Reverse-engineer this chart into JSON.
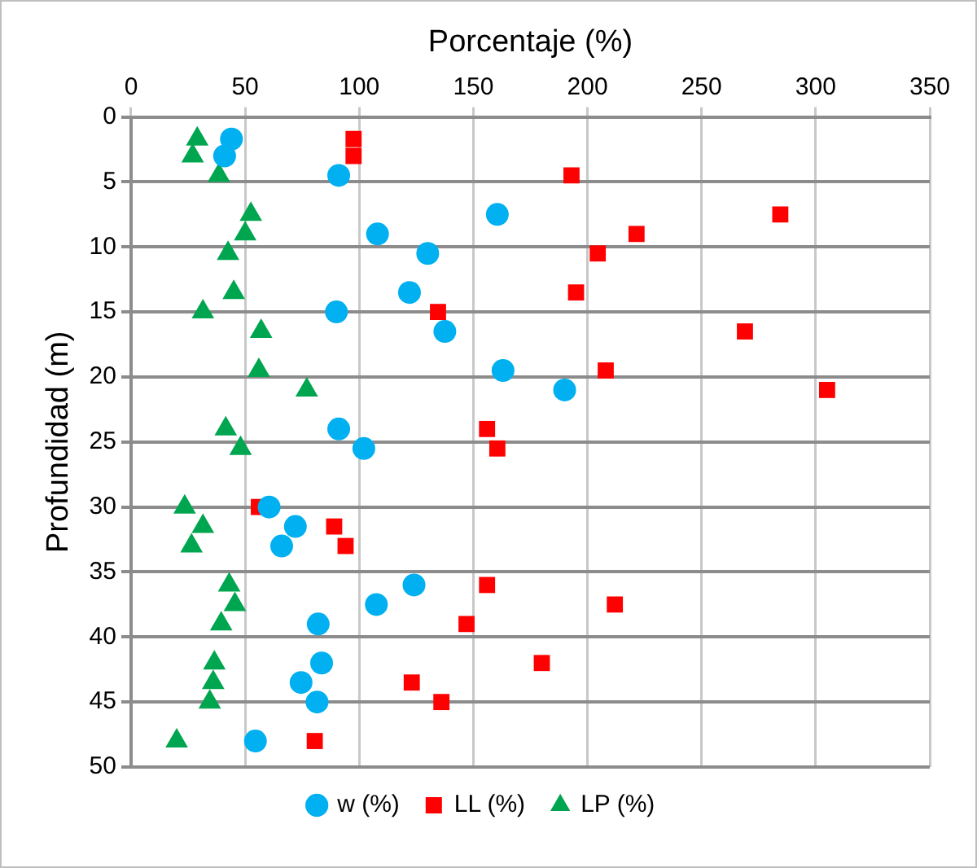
{
  "chart_data": {
    "type": "scatter",
    "xlabel": "Porcentaje (%)",
    "ylabel": "Profundidad (m)",
    "xlim": [
      0,
      350
    ],
    "xticks": [
      0,
      50,
      100,
      150,
      200,
      250,
      300,
      350
    ],
    "ylim": [
      50,
      0
    ],
    "yticks": [
      0,
      5,
      10,
      15,
      20,
      25,
      30,
      35,
      40,
      45,
      50
    ],
    "grid": true,
    "legend": "bottom",
    "series": [
      {
        "name": "w (%)",
        "color": "#00b0f0",
        "marker": "circle",
        "x": [
          44,
          41,
          91,
          160.5,
          108,
          130,
          122,
          90,
          137.5,
          163,
          190,
          91,
          102,
          60.5,
          72,
          66,
          124,
          107.5,
          82,
          83.5,
          74.5,
          81.5,
          54.5
        ],
        "values": [
          1.7,
          3,
          4.5,
          7.5,
          9,
          10.5,
          13.5,
          15,
          16.5,
          19.5,
          21,
          24,
          25.5,
          30,
          31.5,
          33,
          36,
          37.5,
          39,
          42,
          43.5,
          45,
          48
        ]
      },
      {
        "name": "LL (%)",
        "color": "#ff0000",
        "marker": "square",
        "x": [
          97.5,
          97.5,
          193,
          284.5,
          221.5,
          204.5,
          195,
          134.5,
          269,
          208,
          305,
          156,
          160.5,
          56,
          89,
          94,
          156,
          212,
          147,
          180,
          123,
          136,
          80.5
        ],
        "values": [
          1.7,
          3,
          4.5,
          7.5,
          9,
          10.5,
          13.5,
          15,
          16.5,
          19.5,
          21,
          24,
          25.5,
          30,
          31.5,
          33,
          36,
          37.5,
          39,
          42,
          43.5,
          45,
          48
        ]
      },
      {
        "name": "LP (%)",
        "color": "#00a550",
        "marker": "triangle",
        "x": [
          29,
          27,
          38.5,
          52.5,
          50,
          42.5,
          45,
          31.5,
          57,
          56,
          77,
          41.5,
          48,
          23.5,
          31.5,
          26.5,
          43,
          45.5,
          39.5,
          36.5,
          36,
          34.5,
          20
        ],
        "values": [
          1.7,
          3,
          4.5,
          7.5,
          9,
          10.5,
          13.5,
          15,
          16.5,
          19.5,
          21,
          24,
          25.5,
          30,
          31.5,
          33,
          36,
          37.5,
          39,
          42,
          43.5,
          45,
          48
        ]
      }
    ]
  }
}
